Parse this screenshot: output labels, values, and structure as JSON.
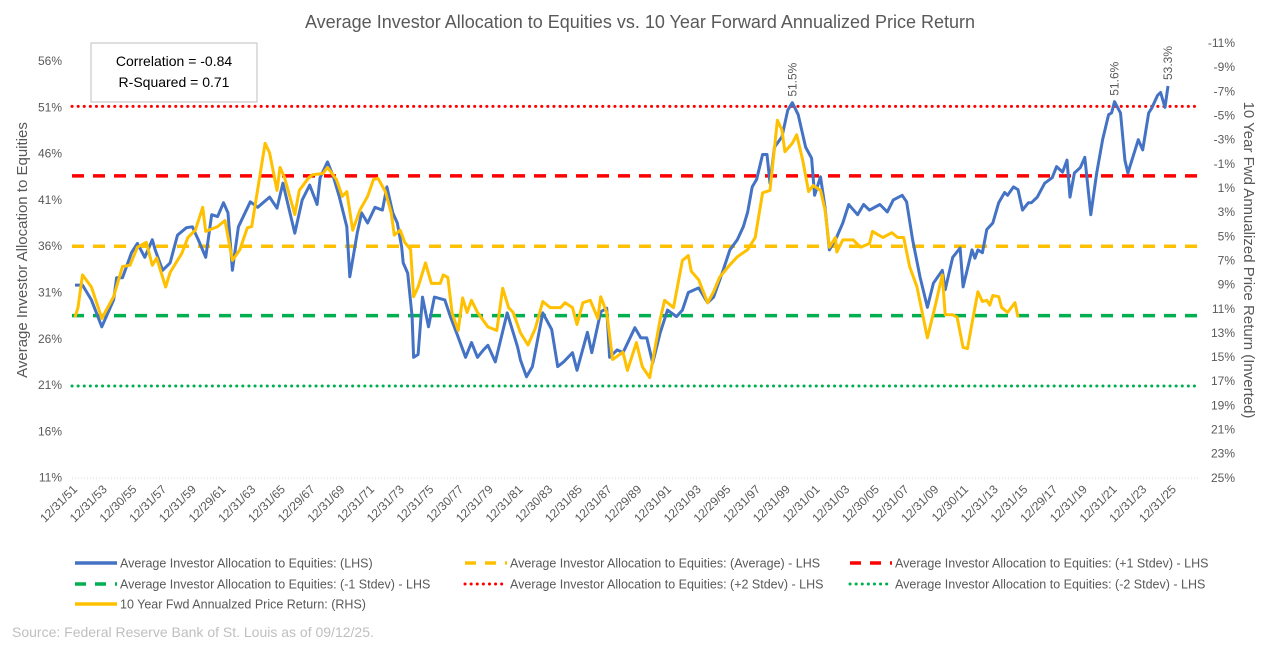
{
  "chart_data": {
    "type": "line",
    "title": "Average Investor Allocation to Equities vs. 10 Year Forward Annualized Price Return",
    "ylabel": "Average Investor Allocation to Equities",
    "y2label": "10 Year Fwd Annualized Price Return (Inverted)",
    "ylim": [
      11,
      56
    ],
    "y2lim": [
      -11,
      25
    ],
    "y2_inverted": true,
    "y_ticks": [
      "11%",
      "16%",
      "21%",
      "26%",
      "31%",
      "36%",
      "41%",
      "46%",
      "51%",
      "56%"
    ],
    "y2_ticks": [
      "-11%",
      "-9%",
      "-7%",
      "-5%",
      "-3%",
      "-1%",
      "1%",
      "3%",
      "5%",
      "7%",
      "9%",
      "11%",
      "13%",
      "15%",
      "17%",
      "19%",
      "21%",
      "23%",
      "25%"
    ],
    "x_ticks": [
      "12/31/51",
      "12/31/53",
      "12/30/55",
      "12/31/57",
      "12/31/59",
      "12/29/61",
      "12/31/63",
      "12/31/65",
      "12/29/67",
      "12/31/69",
      "12/31/71",
      "12/31/73",
      "12/31/75",
      "12/30/77",
      "12/31/79",
      "12/31/81",
      "12/30/83",
      "12/31/85",
      "12/31/87",
      "12/29/89",
      "12/31/91",
      "12/31/93",
      "12/29/95",
      "12/31/97",
      "12/31/99",
      "12/31/01",
      "12/31/03",
      "12/30/05",
      "12/31/07",
      "12/31/09",
      "12/30/11",
      "12/31/13",
      "12/31/15",
      "12/29/17",
      "12/31/19",
      "12/31/21",
      "12/31/23",
      "12/31/25"
    ],
    "stats_box": {
      "correlation": "Correlation = -0.84",
      "r_squared": "R-Squared = 0.71"
    },
    "reference_lines": [
      {
        "name": "Average Investor Allocation to Equities: (Average) - LHS",
        "value": 36.0,
        "color": "#FFC000",
        "style": "dashed"
      },
      {
        "name": "Average Investor Allocation to Equities: (+1 Stdev) - LHS",
        "value": 43.6,
        "color": "#FF0000",
        "style": "dashed"
      },
      {
        "name": "Average Investor Allocation to Equities: (-1 Stdev) - LHS",
        "value": 28.5,
        "color": "#00B050",
        "style": "dashed"
      },
      {
        "name": "Average Investor Allocation to Equities: (+2 Stdev) - LHS",
        "value": 51.1,
        "color": "#FF0000",
        "style": "dotted"
      },
      {
        "name": "Average Investor Allocation to Equities: (-2 Stdev) - LHS",
        "value": 20.9,
        "color": "#00B050",
        "style": "dotted"
      }
    ],
    "annotations": [
      {
        "text": "51.5%",
        "x": 2000.1,
        "y": 51.5
      },
      {
        "text": "51.6%",
        "x": 2021.8,
        "y": 51.6
      },
      {
        "text": "53.3%",
        "x": 2025.4,
        "y": 53.3
      }
    ],
    "series": [
      {
        "name": "Average Investor Allocation to Equities: (LHS)",
        "axis": "left",
        "color": "#4472C4",
        "x": [
          1951.8,
          1952.3,
          1952.9,
          1953.6,
          1954.4,
          1954.6,
          1955.0,
          1955.6,
          1956.0,
          1956.5,
          1957.0,
          1957.2,
          1957.7,
          1958.2,
          1958.7,
          1959.3,
          1959.7,
          1960.1,
          1960.6,
          1961.0,
          1961.4,
          1961.8,
          1962.1,
          1962.4,
          1962.8,
          1963.6,
          1964.1,
          1964.9,
          1965.4,
          1965.8,
          1966.6,
          1967.1,
          1967.6,
          1968.1,
          1968.3,
          1968.8,
          1969.2,
          1969.6,
          1970.1,
          1970.3,
          1970.8,
          1971.1,
          1971.5,
          1972.0,
          1972.5,
          1972.8,
          1973.2,
          1973.5,
          1973.8,
          1973.9,
          1974.2,
          1974.5,
          1974.6,
          1974.9,
          1975.2,
          1975.6,
          1976.0,
          1976.7,
          1977.1,
          1977.5,
          1978.1,
          1978.5,
          1978.9,
          1979.3,
          1979.6,
          1980.1,
          1980.9,
          1981.6,
          1981.8,
          1982.2,
          1982.6,
          1983.3,
          1983.9,
          1984.3,
          1984.7,
          1985.3,
          1985.6,
          1986.3,
          1986.6,
          1987.2,
          1987.6,
          1987.8,
          1988.3,
          1988.7,
          1989.5,
          1989.9,
          1990.3,
          1990.7,
          1991.0,
          1991.2,
          1991.7,
          1992.3,
          1992.7,
          1993.1,
          1993.8,
          1994.4,
          1994.8,
          1995.4,
          1995.9,
          1996.4,
          1996.8,
          1997.1,
          1997.4,
          1997.7,
          1998.1,
          1998.4,
          1998.6,
          1998.9,
          1999.4,
          1999.8,
          2000.1,
          2000.5,
          2001.0,
          2001.4,
          2001.6,
          2002.0,
          2002.3,
          2002.6,
          2003.1,
          2003.5,
          2003.9,
          2004.5,
          2004.9,
          2005.3,
          2006.0,
          2006.5,
          2006.9,
          2007.5,
          2007.8,
          2008.2,
          2008.7,
          2009.2,
          2009.6,
          2010.2,
          2010.4,
          2010.9,
          2011.4,
          2011.6,
          2012.2,
          2012.4,
          2012.6,
          2012.9,
          2013.2,
          2013.6,
          2014.0,
          2014.4,
          2014.6,
          2015.0,
          2015.3,
          2015.6,
          2016.0,
          2016.2,
          2016.6,
          2017.1,
          2017.6,
          2017.9,
          2018.3,
          2018.6,
          2018.8,
          2019.1,
          2019.5,
          2019.8,
          2020.2,
          2020.6,
          2021.0,
          2021.4,
          2021.6,
          2021.8,
          2022.2,
          2022.5,
          2022.7,
          2023.4,
          2023.7,
          2024.1,
          2024.3,
          2024.7,
          2024.9,
          2025.2,
          2025.4
        ],
        "values": [
          31.8,
          31.8,
          30.2,
          27.3,
          30.2,
          32.6,
          32.6,
          35.3,
          36.3,
          34.8,
          36.7,
          35.6,
          33.4,
          34.2,
          37.2,
          38.0,
          38.1,
          36.7,
          34.8,
          39.4,
          39.2,
          40.7,
          39.6,
          33.4,
          38.1,
          40.8,
          40.2,
          41.3,
          40.1,
          42.8,
          37.4,
          41.0,
          42.6,
          40.5,
          43.4,
          45.1,
          43.5,
          41.3,
          38.1,
          32.7,
          37.4,
          39.6,
          38.5,
          40.2,
          39.9,
          42.4,
          39.6,
          38.5,
          35.9,
          34.2,
          33.1,
          28.4,
          24.0,
          24.3,
          30.5,
          27.3,
          30.5,
          30.2,
          28.3,
          26.6,
          24.0,
          25.6,
          24.0,
          24.8,
          25.3,
          23.5,
          28.8,
          25.1,
          23.7,
          21.9,
          23.0,
          28.8,
          27.0,
          23.0,
          23.5,
          24.5,
          22.6,
          26.7,
          24.5,
          28.9,
          29.3,
          24.0,
          24.8,
          24.5,
          27.2,
          26.1,
          26.1,
          23.4,
          25.3,
          26.6,
          29.1,
          28.4,
          29.1,
          31.0,
          31.5,
          29.9,
          30.5,
          33.2,
          35.6,
          36.7,
          38.1,
          39.7,
          42.4,
          43.2,
          45.9,
          45.9,
          42.8,
          46.7,
          47.8,
          50.7,
          51.5,
          50.2,
          46.7,
          45.5,
          41.5,
          43.5,
          40.2,
          35.6,
          37.0,
          38.5,
          40.5,
          39.4,
          40.5,
          39.9,
          40.5,
          39.7,
          41.0,
          41.5,
          40.8,
          36.7,
          32.7,
          29.4,
          32.0,
          33.4,
          31.3,
          34.8,
          35.8,
          31.6,
          35.6,
          34.7,
          35.6,
          35.3,
          37.8,
          38.5,
          40.7,
          41.8,
          41.5,
          42.4,
          42.1,
          39.9,
          40.7,
          40.7,
          41.3,
          42.8,
          43.4,
          44.6,
          44.0,
          45.3,
          41.3,
          43.9,
          44.5,
          45.6,
          39.4,
          43.9,
          47.5,
          50.2,
          50.4,
          51.6,
          50.4,
          45.3,
          43.9,
          47.5,
          46.4,
          50.4,
          50.9,
          52.3,
          52.6,
          51.0,
          53.3
        ]
      },
      {
        "name": "10 Year Fwd Annualzed Price Return: (RHS)",
        "axis": "right",
        "color": "#FFC000",
        "x": [
          1951.8,
          1952.0,
          1952.3,
          1952.9,
          1953.6,
          1954.4,
          1955.0,
          1955.5,
          1956.0,
          1956.6,
          1957.0,
          1957.3,
          1957.9,
          1958.2,
          1959.0,
          1959.4,
          1959.9,
          1960.4,
          1960.6,
          1961.4,
          1961.9,
          1962.4,
          1962.9,
          1963.4,
          1963.7,
          1964.6,
          1964.9,
          1965.4,
          1965.6,
          1965.9,
          1966.6,
          1966.9,
          1967.5,
          1967.8,
          1968.5,
          1968.8,
          1969.4,
          1969.8,
          1970.1,
          1970.5,
          1971.0,
          1971.5,
          1971.9,
          1972.2,
          1972.7,
          1973.1,
          1973.3,
          1973.7,
          1974.0,
          1974.4,
          1974.6,
          1974.9,
          1975.4,
          1975.8,
          1976.4,
          1976.6,
          1976.9,
          1977.2,
          1977.6,
          1977.9,
          1978.2,
          1978.5,
          1978.9,
          1979.6,
          1980.2,
          1980.6,
          1981.0,
          1981.3,
          1981.8,
          1982.3,
          1982.8,
          1983.3,
          1983.8,
          1984.5,
          1984.8,
          1985.3,
          1985.6,
          1986.0,
          1986.5,
          1987.0,
          1987.2,
          1987.6,
          1988.0,
          1988.7,
          1989.0,
          1989.6,
          1990.0,
          1990.5,
          1991.2,
          1991.5,
          1992.1,
          1992.7,
          1993.1,
          1993.3,
          1993.8,
          1994.4,
          1994.8,
          1995.2,
          1995.8,
          1996.4,
          1997.1,
          1997.6,
          1998.1,
          1998.6,
          1999.1,
          1999.4,
          1999.6,
          2000.1,
          2000.4,
          2000.8,
          2001.2,
          2001.5,
          2002.0,
          2002.3,
          2002.6,
          2003.0,
          2003.1,
          2003.5,
          2004.2,
          2004.7,
          2005.3,
          2005.5,
          2006.2,
          2006.8,
          2007.2,
          2007.6,
          2008.0,
          2008.5,
          2009.2,
          2009.7,
          2010.2,
          2010.4,
          2010.9,
          2011.2,
          2011.6,
          2011.9,
          2012.2,
          2012.6,
          2012.9,
          2013.2,
          2013.4,
          2013.6,
          2014.0,
          2014.2,
          2014.6,
          2015.1,
          2015.3
        ],
        "values": [
          11.7,
          10.9,
          8.2,
          9.2,
          11.8,
          10.0,
          7.5,
          7.4,
          5.9,
          5.5,
          7.4,
          6.8,
          9.2,
          8.0,
          6.4,
          5.1,
          4.5,
          2.6,
          4.6,
          4.2,
          3.7,
          7.0,
          6.1,
          4.3,
          4.2,
          -2.7,
          -1.9,
          1.2,
          -0.7,
          0.1,
          3.2,
          1.2,
          0.2,
          -0.1,
          -0.2,
          -0.7,
          0.3,
          1.7,
          1.3,
          4.5,
          2.8,
          1.7,
          0.3,
          0.2,
          1.3,
          3.1,
          4.9,
          4.5,
          5.5,
          6.1,
          10.0,
          9.2,
          7.2,
          8.9,
          8.9,
          8.2,
          8.4,
          11.4,
          12.8,
          10.1,
          11.3,
          10.3,
          11.3,
          12.5,
          12.8,
          9.3,
          10.9,
          11.3,
          13.0,
          14.0,
          12.6,
          10.4,
          10.9,
          10.9,
          10.5,
          10.9,
          12.3,
          10.5,
          10.3,
          11.8,
          10.0,
          11.3,
          15.2,
          14.6,
          16.1,
          13.8,
          15.8,
          16.7,
          11.9,
          10.3,
          10.9,
          7.0,
          6.6,
          7.9,
          8.6,
          10.5,
          9.6,
          8.4,
          7.5,
          6.7,
          6.1,
          5.1,
          1.4,
          1.2,
          -4.6,
          -3.8,
          -2.0,
          -2.7,
          -3.4,
          -1.3,
          1.3,
          0.8,
          1.2,
          2.8,
          5.9,
          5.1,
          6.3,
          5.3,
          5.3,
          5.9,
          5.6,
          4.6,
          5.1,
          4.7,
          5.1,
          5.1,
          7.5,
          9.2,
          13.4,
          10.9,
          8.2,
          11.5,
          11.5,
          11.7,
          14.2,
          14.3,
          12.2,
          9.6,
          10.4,
          10.3,
          10.7,
          9.9,
          10.0,
          10.9,
          11.3,
          10.5,
          11.7
        ]
      }
    ],
    "legend": [
      {
        "label": "Average Investor Allocation to Equities: (LHS)",
        "color": "#4472C4",
        "style": "solid"
      },
      {
        "label": "Average Investor Allocation to Equities: (Average) - LHS",
        "color": "#FFC000",
        "style": "dashed"
      },
      {
        "label": "Average Investor Allocation to Equities: (+1 Stdev) - LHS",
        "color": "#FF0000",
        "style": "dashed"
      },
      {
        "label": "Average Investor Allocation to Equities: (-1 Stdev) - LHS",
        "color": "#00B050",
        "style": "dashed"
      },
      {
        "label": "Average Investor Allocation to Equities: (+2 Stdev) - LHS",
        "color": "#FF0000",
        "style": "dotted"
      },
      {
        "label": "Average Investor Allocation to Equities: (-2 Stdev) - LHS",
        "color": "#00B050",
        "style": "dotted"
      },
      {
        "label": "10 Year Fwd Annualzed Price Return: (RHS)",
        "color": "#FFC000",
        "style": "solid"
      }
    ],
    "legend_position": "bottom"
  },
  "source": "Source: Federal Reserve Bank of St. Louis as of 09/12/25."
}
